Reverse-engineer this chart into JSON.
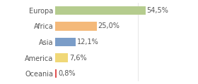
{
  "categories": [
    "Europa",
    "Africa",
    "Asia",
    "America",
    "Oceania"
  ],
  "values": [
    54.5,
    25.0,
    12.1,
    7.6,
    0.8
  ],
  "labels": [
    "54,5%",
    "25,0%",
    "12,1%",
    "7,6%",
    "0,8%"
  ],
  "bar_colors": [
    "#b5cc8e",
    "#f4b97a",
    "#7b9dc8",
    "#f0d878",
    "#e05050"
  ],
  "background_color": "#ffffff",
  "xlim": [
    0,
    72
  ],
  "bar_height": 0.55,
  "label_fontsize": 7.0,
  "tick_fontsize": 7.0
}
